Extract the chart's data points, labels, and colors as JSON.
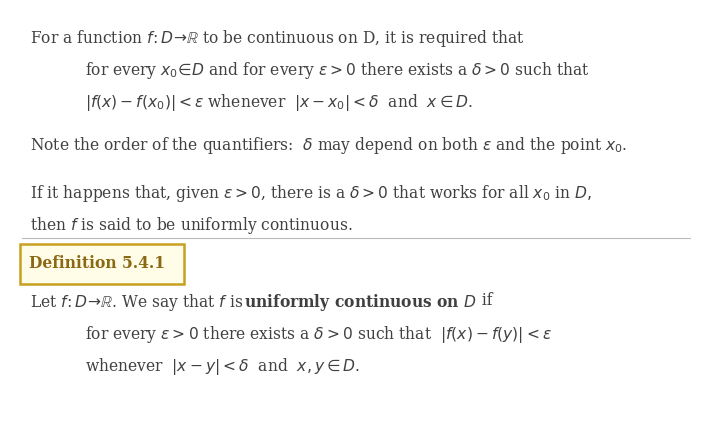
{
  "bg_color": "#ffffff",
  "text_color": "#404040",
  "box_border_color": "#c8a020",
  "box_fill_color": "#fffce8",
  "fig_width": 7.11,
  "fig_height": 4.33,
  "dpi": 100,
  "font_size": 11.2,
  "font_size_small": 10.8
}
